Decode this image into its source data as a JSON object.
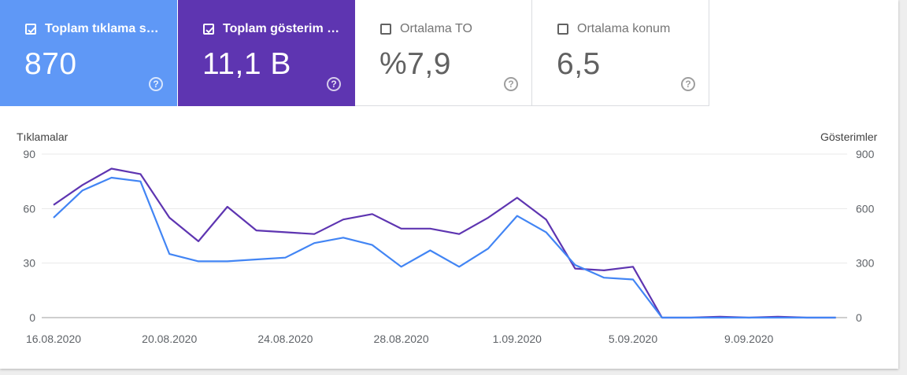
{
  "metrics": {
    "clicks": {
      "label": "Toplam tıklama s…",
      "value": "870",
      "checked": true,
      "color": "#5f98f6"
    },
    "impressions": {
      "label": "Toplam gösterim …",
      "value": "11,1 B",
      "checked": true,
      "color": "#5e35b1"
    },
    "ctr": {
      "label": "Ortalama TO",
      "value": "%7,9",
      "checked": false
    },
    "position": {
      "label": "Ortalama konum",
      "value": "6,5",
      "checked": false
    },
    "help_glyph": "?"
  },
  "chart_data": {
    "type": "line",
    "left_axis_title": "Tıklamalar",
    "right_axis_title": "Gösterimler",
    "left_ylim": [
      0,
      90
    ],
    "left_ticks": [
      "90",
      "60",
      "30",
      "0"
    ],
    "right_ylim": [
      0,
      900
    ],
    "right_ticks": [
      "900",
      "600",
      "300",
      "0"
    ],
    "x_tick_labels": [
      "16.08.2020",
      "20.08.2020",
      "24.08.2020",
      "28.08.2020",
      "1.09.2020",
      "5.09.2020",
      "9.09.2020"
    ],
    "x_tick_index": [
      0,
      4,
      8,
      12,
      16,
      20,
      24
    ],
    "grid": true,
    "series": [
      {
        "name": "Tıklamalar",
        "axis": "left",
        "color": "#4285f4",
        "values": [
          55,
          70,
          77,
          75,
          35,
          31,
          31,
          32,
          33,
          41,
          44,
          40,
          28,
          37,
          28,
          38,
          56,
          47,
          29,
          22,
          21,
          0,
          0,
          0,
          0,
          0,
          0,
          0
        ]
      },
      {
        "name": "Gösterimler",
        "axis": "right",
        "color": "#5e35b1",
        "values": [
          620,
          730,
          820,
          790,
          550,
          420,
          610,
          480,
          470,
          460,
          540,
          570,
          490,
          490,
          460,
          550,
          660,
          540,
          270,
          260,
          280,
          0,
          0,
          5,
          0,
          5,
          0,
          0
        ]
      }
    ]
  }
}
